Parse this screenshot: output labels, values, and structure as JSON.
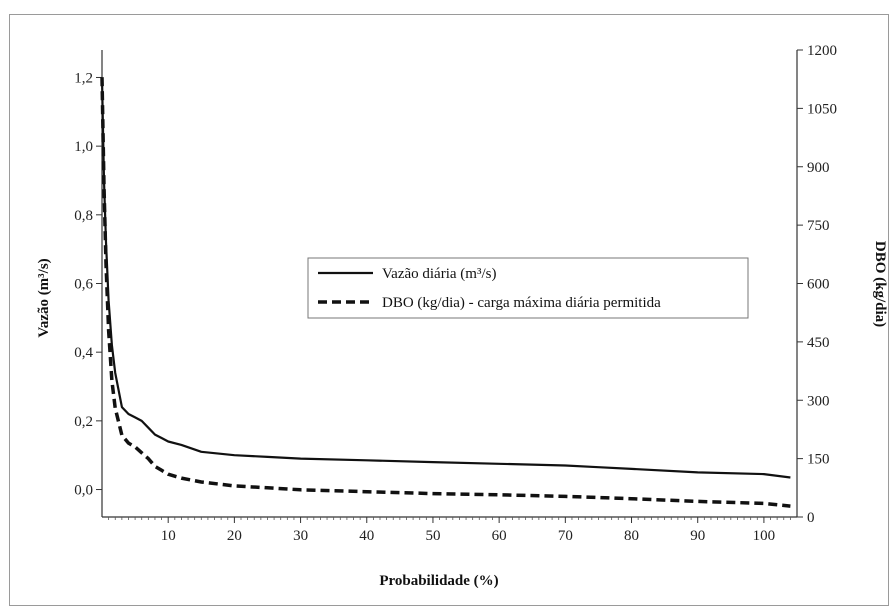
{
  "chart_data": {
    "type": "line",
    "xlabel": "Probabilidade (%)",
    "ylabel_left": "Vazão (m³/s)",
    "ylabel_right": "DBO (kg/dia)",
    "xlim": [
      0,
      105
    ],
    "ylim_left": [
      -0.08,
      1.28
    ],
    "ylim_right": [
      0,
      1200
    ],
    "x_ticks": [
      10,
      20,
      30,
      40,
      50,
      60,
      70,
      80,
      90,
      100
    ],
    "y_left_ticks": [
      "0,0",
      "0,2",
      "0,4",
      "0,6",
      "0,8",
      "1,0",
      "1,2"
    ],
    "y_left_tick_values": [
      0,
      0.2,
      0.4,
      0.6,
      0.8,
      1.0,
      1.2
    ],
    "y_right_ticks": [
      "0",
      "150",
      "300",
      "450",
      "600",
      "750",
      "900",
      "1050",
      "1200"
    ],
    "y_right_tick_values": [
      0,
      150,
      300,
      450,
      600,
      750,
      900,
      1050,
      1200
    ],
    "legend_position": "center-right",
    "series": [
      {
        "name": "Vazão diária (m³/s)",
        "axis": "left",
        "style": "solid",
        "color": "#111111",
        "x": [
          0,
          0.3,
          0.6,
          1,
          1.5,
          2,
          3,
          4,
          5,
          6,
          7,
          8,
          9,
          10,
          12,
          15,
          20,
          25,
          30,
          40,
          50,
          60,
          70,
          75,
          80,
          90,
          100,
          104
        ],
        "y": [
          1.2,
          0.9,
          0.72,
          0.55,
          0.42,
          0.34,
          0.24,
          0.22,
          0.21,
          0.2,
          0.18,
          0.16,
          0.15,
          0.14,
          0.13,
          0.11,
          0.1,
          0.095,
          0.09,
          0.085,
          0.08,
          0.075,
          0.07,
          0.065,
          0.06,
          0.05,
          0.045,
          0.035
        ]
      },
      {
        "name": "DBO (kg/dia) - carga máxima diária permitida",
        "axis": "right",
        "style": "dashed",
        "color": "#111111",
        "x": [
          0,
          0.3,
          0.6,
          1,
          1.5,
          2,
          3,
          4,
          5,
          6,
          7,
          8,
          9,
          10,
          12,
          15,
          20,
          25,
          30,
          40,
          50,
          60,
          70,
          75,
          80,
          90,
          100,
          104
        ],
        "y": [
          1130,
          850,
          650,
          480,
          350,
          280,
          210,
          190,
          180,
          165,
          150,
          130,
          120,
          110,
          100,
          90,
          80,
          75,
          70,
          65,
          60,
          57,
          53,
          50,
          47,
          40,
          35,
          28
        ]
      }
    ]
  }
}
